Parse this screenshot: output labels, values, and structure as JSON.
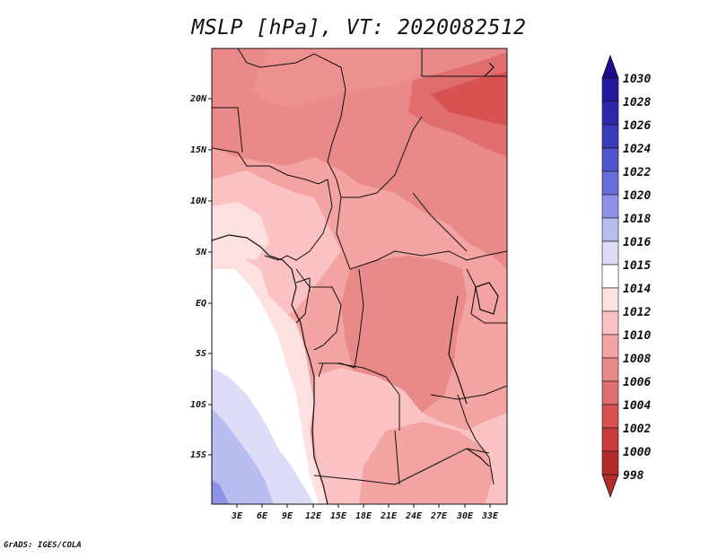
{
  "title": "MSLP [hPa], VT: 2020082512",
  "credit": "GrADS: IGES/COLA",
  "map": {
    "lat_ticks": [
      "20N",
      "15N",
      "10N",
      "5N",
      "EQ",
      "5S",
      "10S",
      "15S"
    ],
    "lon_ticks": [
      "3E",
      "6E",
      "9E",
      "12E",
      "15E",
      "18E",
      "21E",
      "24E",
      "27E",
      "30E",
      "33E"
    ]
  },
  "colorbar": {
    "levels": [
      {
        "label": "1030",
        "color": "#1a0d8c"
      },
      {
        "label": "1028",
        "color": "#24199c"
      },
      {
        "label": "1026",
        "color": "#2e28ad"
      },
      {
        "label": "1024",
        "color": "#3a3bbd"
      },
      {
        "label": "1022",
        "color": "#4f53cc"
      },
      {
        "label": "1020",
        "color": "#6a6fd9"
      },
      {
        "label": "1018",
        "color": "#8f93e6"
      },
      {
        "label": "1016",
        "color": "#b9bcf0"
      },
      {
        "label": "1015",
        "color": "#dcdcf8"
      },
      {
        "label": "1014",
        "color": "#ffffff"
      },
      {
        "label": "1012",
        "color": "#fde0e0"
      },
      {
        "label": "1010",
        "color": "#fac2c2"
      },
      {
        "label": "1008",
        "color": "#f4a3a3"
      },
      {
        "label": "1006",
        "color": "#e98989"
      },
      {
        "label": "1004",
        "color": "#e06e6e"
      },
      {
        "label": "1002",
        "color": "#d85252"
      },
      {
        "label": "1000",
        "color": "#c83a3a"
      },
      {
        "label": "998",
        "color": "#b42a2a"
      }
    ],
    "top_color": "#1a0d8c",
    "bottom_color": "#b42a2a"
  }
}
